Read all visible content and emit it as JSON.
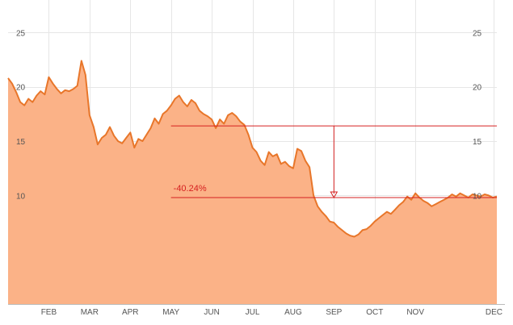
{
  "chart_data": {
    "type": "area",
    "title": "",
    "xlabel": "",
    "ylabel": "",
    "ylim": [
      0,
      28
    ],
    "xlim": [
      0,
      12
    ],
    "y_ticks": [
      10,
      15,
      20,
      25
    ],
    "y_axis_sides": [
      "left",
      "right"
    ],
    "grid": true,
    "colors": {
      "line": "#e8762a",
      "fill": "#fbb287",
      "annotation": "#d62020"
    },
    "x_categories": [
      "FEB",
      "MAR",
      "APR",
      "MAY",
      "JUN",
      "JUL",
      "AUG",
      "SEP",
      "OCT",
      "NOV",
      "DEC"
    ],
    "x_category_positions": [
      1,
      2,
      3,
      4,
      5,
      6,
      7,
      8,
      9,
      10,
      11.93
    ],
    "series": [
      {
        "x": [
          0,
          0.1,
          0.2,
          0.3,
          0.4,
          0.5,
          0.6,
          0.7,
          0.8,
          0.9,
          1,
          1.1,
          1.2,
          1.3,
          1.4,
          1.5,
          1.6,
          1.7,
          1.8,
          1.9,
          2,
          2.1,
          2.2,
          2.3,
          2.4,
          2.5,
          2.6,
          2.7,
          2.8,
          2.9,
          3,
          3.1,
          3.2,
          3.3,
          3.4,
          3.5,
          3.6,
          3.7,
          3.8,
          3.9,
          4,
          4.1,
          4.2,
          4.3,
          4.4,
          4.5,
          4.6,
          4.7,
          4.8,
          4.9,
          5,
          5.1,
          5.2,
          5.3,
          5.4,
          5.5,
          5.6,
          5.7,
          5.8,
          5.9,
          6,
          6.1,
          6.2,
          6.3,
          6.4,
          6.5,
          6.6,
          6.7,
          6.8,
          6.9,
          7,
          7.1,
          7.2,
          7.3,
          7.4,
          7.5,
          7.6,
          7.7,
          7.8,
          7.9,
          8,
          8.1,
          8.2,
          8.3,
          8.4,
          8.5,
          8.6,
          8.7,
          8.8,
          8.9,
          9,
          9.1,
          9.2,
          9.3,
          9.4,
          9.5,
          9.6,
          9.7,
          9.8,
          9.9,
          10,
          10.1,
          10.2,
          10.3,
          10.4,
          10.5,
          10.6,
          10.7,
          10.8,
          10.9,
          11,
          11.1,
          11.2,
          11.3,
          11.4,
          11.5,
          11.6,
          11.7,
          11.8,
          11.9,
          12
        ],
        "values": [
          20.8,
          20.3,
          19.5,
          18.6,
          18.3,
          18.9,
          18.6,
          19.2,
          19.6,
          19.3,
          20.9,
          20.3,
          19.8,
          19.4,
          19.7,
          19.6,
          19.8,
          20.1,
          22.4,
          21.1,
          17.4,
          16.3,
          14.7,
          15.3,
          15.6,
          16.3,
          15.5,
          15.0,
          14.8,
          15.3,
          15.8,
          14.4,
          15.2,
          15.0,
          15.6,
          16.2,
          17.1,
          16.6,
          17.5,
          17.8,
          18.3,
          18.9,
          19.2,
          18.6,
          18.2,
          18.8,
          18.5,
          17.8,
          17.5,
          17.3,
          17.0,
          16.2,
          17.0,
          16.6,
          17.4,
          17.6,
          17.3,
          16.8,
          16.5,
          15.6,
          14.4,
          14.0,
          13.2,
          12.8,
          14.0,
          13.6,
          13.8,
          12.9,
          13.1,
          12.7,
          12.5,
          14.3,
          14.1,
          13.2,
          12.6,
          10.0,
          9.0,
          8.5,
          8.1,
          7.6,
          7.5,
          7.1,
          6.8,
          6.5,
          6.3,
          6.2,
          6.4,
          6.8,
          6.9,
          7.2,
          7.6,
          7.9,
          8.2,
          8.5,
          8.3,
          8.7,
          9.1,
          9.4,
          9.9,
          9.6,
          10.2,
          9.8,
          9.5,
          9.3,
          9.0,
          9.2,
          9.4,
          9.6,
          9.8,
          10.1,
          9.9,
          10.2,
          10.0,
          9.8,
          10.1,
          10.0,
          9.9,
          10.1,
          10.0,
          9.8,
          9.9
        ]
      }
    ],
    "annotations": [
      {
        "label": "-40.24%",
        "from_value": 16.4,
        "to_value": 9.8,
        "x_start": 4,
        "x_end": 12,
        "x_arrow": 8
      }
    ]
  }
}
